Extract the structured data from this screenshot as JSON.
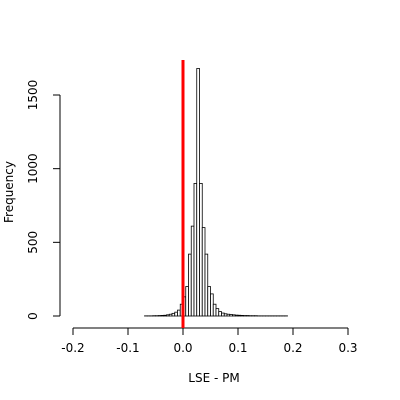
{
  "chart_data": {
    "type": "bar",
    "title": "",
    "xlabel": "LSE - PM",
    "ylabel": "Frequency",
    "xlim": [
      -0.2,
      0.31
    ],
    "ylim": [
      0,
      1700
    ],
    "xticks": [
      -0.2,
      -0.1,
      0.0,
      0.1,
      0.2,
      0.3
    ],
    "xtick_labels": [
      "-0.2",
      "-0.1",
      "0.0",
      "0.1",
      "0.2",
      "0.3"
    ],
    "yticks": [
      0,
      500,
      1000,
      1500
    ],
    "ytick_labels": [
      "0",
      "500",
      "1000",
      "1500"
    ],
    "bin_width": 0.005,
    "bin_start": -0.2,
    "counts": [
      0,
      0,
      0,
      0,
      0,
      0,
      0,
      0,
      0,
      0,
      0,
      0,
      0,
      0,
      0,
      0,
      0,
      0,
      0,
      0,
      0,
      0,
      0,
      0,
      0,
      0,
      1,
      1,
      1,
      2,
      2,
      3,
      4,
      5,
      8,
      12,
      18,
      26,
      40,
      80,
      130,
      200,
      420,
      610,
      900,
      1680,
      900,
      600,
      420,
      200,
      150,
      80,
      50,
      30,
      20,
      15,
      12,
      10,
      8,
      6,
      5,
      4,
      3,
      3,
      2,
      2,
      2,
      1,
      1,
      1,
      1,
      1,
      1,
      1,
      1,
      1,
      1,
      1,
      0,
      0,
      0,
      0,
      0,
      0,
      0,
      0,
      0,
      0,
      0,
      0,
      0,
      0,
      0,
      0,
      0,
      0,
      0,
      0,
      0,
      0,
      0,
      0
    ],
    "reference_line": {
      "x": 0.0,
      "color": "#ff0000"
    },
    "bar_fill": "#ffffff",
    "bar_stroke": "#000000",
    "grid": false,
    "legend": "none"
  }
}
